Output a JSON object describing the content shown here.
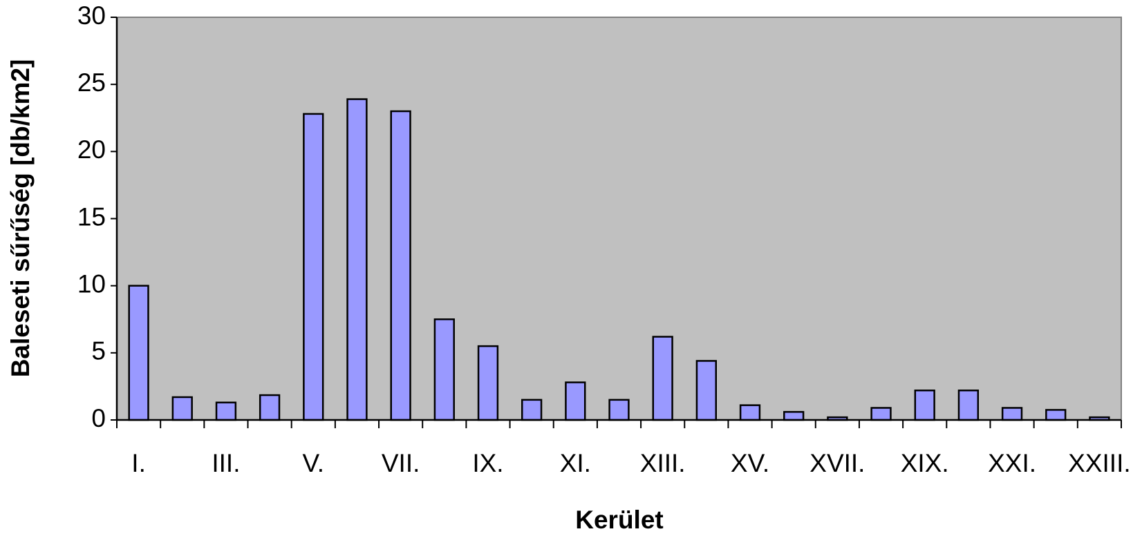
{
  "chart_data": {
    "type": "bar",
    "x_label": "Kerület",
    "y_label": "Baleseti  sűrűség [db/km2]",
    "categories": [
      "I.",
      null,
      "III.",
      null,
      "V.",
      null,
      "VII.",
      null,
      "IX.",
      null,
      "XI.",
      null,
      "XIII.",
      null,
      "XV.",
      null,
      "XVII.",
      null,
      "XIX.",
      null,
      "XXI.",
      null,
      "XXIII."
    ],
    "values": [
      10.0,
      1.7,
      1.3,
      1.85,
      22.8,
      23.9,
      23.0,
      7.5,
      5.5,
      1.5,
      2.8,
      1.5,
      6.2,
      4.4,
      1.1,
      0.6,
      0.2,
      0.9,
      2.2,
      2.2,
      0.9,
      0.75,
      0.2
    ],
    "color": "#9999ff",
    "ylim": [
      0,
      30
    ],
    "yticks": [
      0,
      5,
      10,
      15,
      20,
      25,
      30
    ],
    "plot_background": "#c0c0c0"
  }
}
